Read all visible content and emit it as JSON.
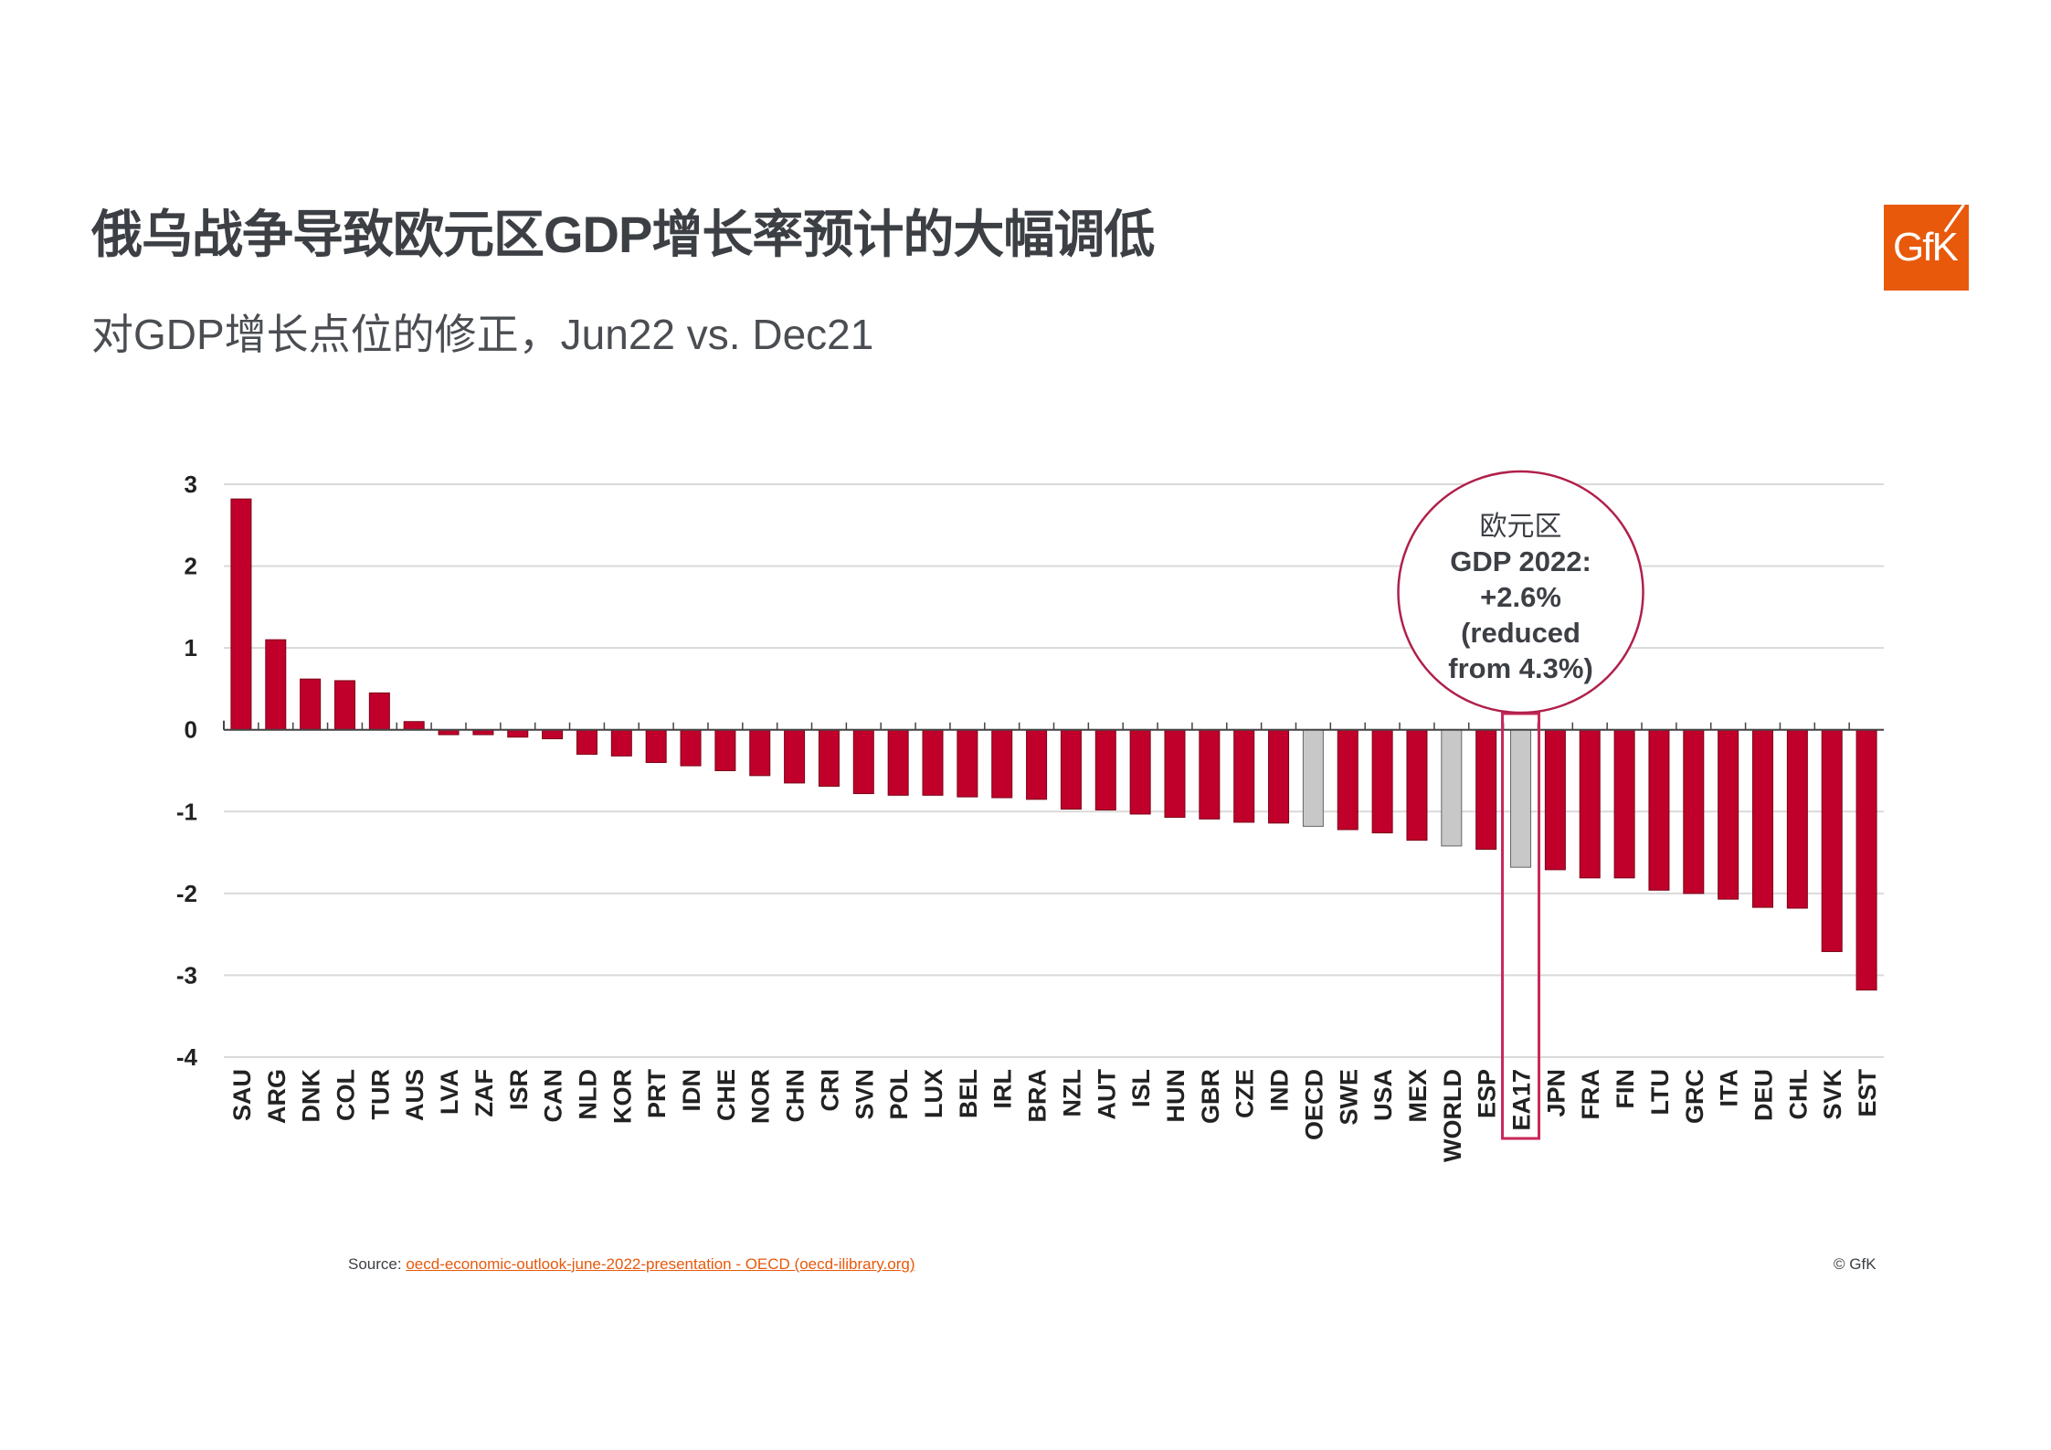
{
  "header": {
    "title": "俄乌战争导致欧元区GDP增长率预计的大幅调低",
    "subtitle": "对GDP增长点位的修正，Jun22 vs. Dec21",
    "logo_text": "GfK"
  },
  "colors": {
    "bar": "#c0002a",
    "aggregate_bar": "#c8c8c8",
    "highlight": "#c8285a",
    "brand": "#e8590c"
  },
  "chart_data": {
    "type": "bar",
    "title": "",
    "xlabel": "",
    "ylabel": "",
    "ylim": [
      -4,
      3
    ],
    "yticks": [
      "3",
      "2",
      "1",
      "0",
      "-1",
      "-2",
      "-3",
      "-4"
    ],
    "grid": true,
    "categories": [
      "SAU",
      "ARG",
      "DNK",
      "COL",
      "TUR",
      "AUS",
      "LVA",
      "ZAF",
      "ISR",
      "CAN",
      "NLD",
      "KOR",
      "PRT",
      "IDN",
      "CHE",
      "NOR",
      "CHN",
      "CRI",
      "SVN",
      "POL",
      "LUX",
      "BEL",
      "IRL",
      "BRA",
      "NZL",
      "AUT",
      "ISL",
      "HUN",
      "GBR",
      "CZE",
      "IND",
      "OECD",
      "SWE",
      "USA",
      "MEX",
      "WORLD",
      "ESP",
      "EA17",
      "JPN",
      "FRA",
      "FIN",
      "LTU",
      "GRC",
      "ITA",
      "DEU",
      "CHL",
      "SVK",
      "EST"
    ],
    "values": [
      2.82,
      1.1,
      0.62,
      0.6,
      0.45,
      0.1,
      -0.06,
      -0.06,
      -0.09,
      -0.11,
      -0.3,
      -0.32,
      -0.4,
      -0.44,
      -0.5,
      -0.56,
      -0.65,
      -0.69,
      -0.78,
      -0.8,
      -0.8,
      -0.82,
      -0.83,
      -0.85,
      -0.97,
      -0.98,
      -1.03,
      -1.07,
      -1.09,
      -1.13,
      -1.14,
      -1.18,
      -1.22,
      -1.26,
      -1.35,
      -1.42,
      -1.46,
      -1.68,
      -1.71,
      -1.81,
      -1.81,
      -1.96,
      -2.0,
      -2.07,
      -2.17,
      -2.18,
      -2.71,
      -3.18
    ],
    "aggregates": [
      "OECD",
      "WORLD",
      "EA17"
    ],
    "highlighted": "EA17",
    "annotation": {
      "line1": "欧元区",
      "line2": "GDP 2022:",
      "line3": "+2.6%",
      "line4": "(reduced",
      "line5": "from 4.3%)"
    }
  },
  "footer": {
    "source_label": "Source:",
    "source_link": "oecd-economic-outlook-june-2022-presentation - OECD (oecd-ilibrary.org)",
    "copyright": "© GfK"
  }
}
